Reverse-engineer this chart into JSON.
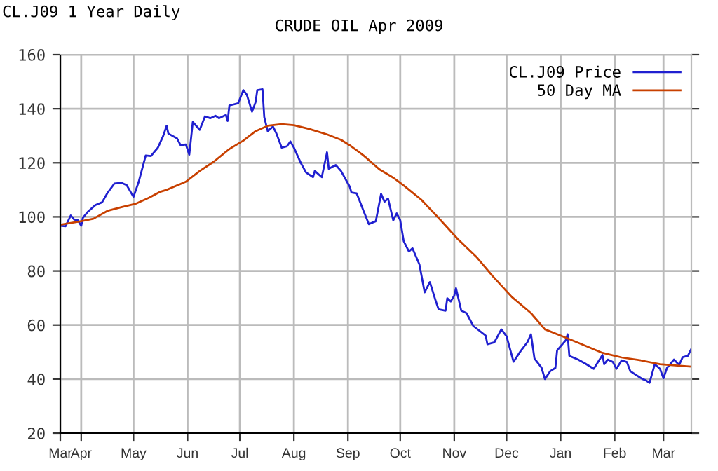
{
  "chart_data": {
    "type": "line",
    "title": "CRUDE OIL Apr 2009",
    "subtitle": "CL.J09 1 Year Daily",
    "xlim": [
      "2008-03-20",
      "2009-03-17"
    ],
    "xticks": [
      {
        "value": "2008-03-20",
        "label": "Mar"
      },
      {
        "value": "2008-04-01",
        "label": "Apr"
      },
      {
        "value": "2008-05-01",
        "label": "May"
      },
      {
        "value": "2008-06-01",
        "label": "Jun"
      },
      {
        "value": "2008-07-01",
        "label": "Jul"
      },
      {
        "value": "2008-08-01",
        "label": "Aug"
      },
      {
        "value": "2008-09-01",
        "label": "Sep"
      },
      {
        "value": "2008-10-01",
        "label": "Oct"
      },
      {
        "value": "2008-11-01",
        "label": "Nov"
      },
      {
        "value": "2008-12-01",
        "label": "Dec"
      },
      {
        "value": "2009-01-01",
        "label": "Jan"
      },
      {
        "value": "2009-02-01",
        "label": "Feb"
      },
      {
        "value": "2009-03-01",
        "label": "Mar"
      }
    ],
    "ylim": [
      20,
      160
    ],
    "yticks": [
      20,
      40,
      60,
      80,
      100,
      120,
      140,
      160
    ],
    "grid": true,
    "legend": "top right",
    "line_style": "solid",
    "series": [
      {
        "name": "CL.J09 Price",
        "color": "#2020d0",
        "x": [
          "2008-03-20",
          "2008-03-23",
          "2008-03-26",
          "2008-03-28",
          "2008-03-30",
          "2008-04-01",
          "2008-04-02",
          "2008-04-05",
          "2008-04-09",
          "2008-04-13",
          "2008-04-16",
          "2008-04-20",
          "2008-04-24",
          "2008-04-27",
          "2008-05-01",
          "2008-05-04",
          "2008-05-08",
          "2008-05-11",
          "2008-05-15",
          "2008-05-18",
          "2008-05-20",
          "2008-05-21",
          "2008-05-26",
          "2008-05-28",
          "2008-05-31",
          "2008-06-02",
          "2008-06-04",
          "2008-06-08",
          "2008-06-11",
          "2008-06-14",
          "2008-06-17",
          "2008-06-19",
          "2008-06-23",
          "2008-06-24",
          "2008-06-25",
          "2008-06-30",
          "2008-07-03",
          "2008-07-05",
          "2008-07-08",
          "2008-07-10",
          "2008-07-11",
          "2008-07-14",
          "2008-07-15",
          "2008-07-17",
          "2008-07-20",
          "2008-07-22",
          "2008-07-25",
          "2008-07-28",
          "2008-07-30",
          "2008-08-01",
          "2008-08-05",
          "2008-08-08",
          "2008-08-12",
          "2008-08-13",
          "2008-08-17",
          "2008-08-20",
          "2008-08-21",
          "2008-08-25",
          "2008-08-28",
          "2008-09-02",
          "2008-09-03",
          "2008-09-06",
          "2008-09-10",
          "2008-09-13",
          "2008-09-17",
          "2008-09-20",
          "2008-09-22",
          "2008-09-24",
          "2008-09-27",
          "2008-09-29",
          "2008-10-01",
          "2008-10-03",
          "2008-10-06",
          "2008-10-08",
          "2008-10-12",
          "2008-10-15",
          "2008-10-18",
          "2008-10-21",
          "2008-10-23",
          "2008-10-27",
          "2008-10-28",
          "2008-10-30",
          "2008-11-01",
          "2008-11-02",
          "2008-11-05",
          "2008-11-08",
          "2008-11-12",
          "2008-11-19",
          "2008-11-20",
          "2008-11-24",
          "2008-11-28",
          "2008-12-01",
          "2008-12-05",
          "2008-12-09",
          "2008-12-13",
          "2008-12-15",
          "2008-12-17",
          "2008-12-21",
          "2008-12-23",
          "2008-12-26",
          "2008-12-29",
          "2008-12-30",
          "2009-01-04",
          "2009-01-05",
          "2009-01-06",
          "2009-01-11",
          "2009-01-15",
          "2009-01-20",
          "2009-01-25",
          "2009-01-26",
          "2009-01-28",
          "2009-01-31",
          "2009-02-02",
          "2009-02-05",
          "2009-02-08",
          "2009-02-10",
          "2009-02-14",
          "2009-02-17",
          "2009-02-19",
          "2009-02-21",
          "2009-02-24",
          "2009-02-27",
          "2009-03-01",
          "2009-03-03",
          "2009-03-07",
          "2009-03-10",
          "2009-03-12",
          "2009-03-15",
          "2009-03-17"
        ],
        "values": [
          96.7,
          96.5,
          100.5,
          99,
          98.8,
          96.7,
          99.7,
          102,
          104.3,
          105.4,
          108.8,
          112.3,
          112.6,
          111.8,
          107.4,
          113,
          122.7,
          122.5,
          125.6,
          129.9,
          133.7,
          130.8,
          129,
          126.5,
          126.8,
          123,
          135.1,
          132.2,
          137.2,
          136.5,
          137.4,
          136.5,
          137.7,
          135.5,
          141.2,
          142,
          146.9,
          145.2,
          138.9,
          142.4,
          146.9,
          147.2,
          136.9,
          131.7,
          133.4,
          130.8,
          125.6,
          126.1,
          127.9,
          125.6,
          119.9,
          116.4,
          114.7,
          117,
          114.7,
          123.9,
          117.8,
          119.2,
          117,
          111.2,
          109,
          108.7,
          102.1,
          97.3,
          98.4,
          108.5,
          105.6,
          106.8,
          98.7,
          101.3,
          98.7,
          91,
          87.2,
          88.4,
          82.4,
          72.1,
          75.9,
          69.6,
          65.8,
          65.3,
          69.9,
          68.7,
          70.9,
          73.6,
          65.3,
          64.4,
          59.6,
          56.1,
          52.9,
          53.6,
          58.4,
          55.8,
          46.4,
          50.3,
          53.7,
          56.6,
          47.6,
          44.3,
          40,
          42.9,
          44.1,
          50.6,
          54.4,
          56.6,
          48.6,
          47.2,
          45.8,
          43.8,
          48.9,
          45.5,
          47.2,
          46.3,
          43.8,
          46.9,
          46.3,
          42.9,
          41.2,
          40,
          39.5,
          38.6,
          45.5,
          43.8,
          40.3,
          44.1,
          47.2,
          45.2,
          48.1,
          48.6,
          51.2
        ]
      },
      {
        "name": "50 Day MA",
        "color": "#c84000",
        "x": [
          "2008-03-20",
          "2008-04-01",
          "2008-04-08",
          "2008-04-16",
          "2008-04-24",
          "2008-05-02",
          "2008-05-10",
          "2008-05-16",
          "2008-05-20",
          "2008-05-31",
          "2008-06-08",
          "2008-06-16",
          "2008-06-25",
          "2008-07-03",
          "2008-07-10",
          "2008-07-17",
          "2008-07-25",
          "2008-08-01",
          "2008-08-10",
          "2008-08-20",
          "2008-08-28",
          "2008-09-02",
          "2008-09-10",
          "2008-09-19",
          "2008-09-27",
          "2008-10-03",
          "2008-10-13",
          "2008-10-23",
          "2008-11-03",
          "2008-11-14",
          "2008-11-23",
          "2008-12-04",
          "2008-12-15",
          "2008-12-23",
          "2009-01-01",
          "2009-01-12",
          "2009-01-25",
          "2009-02-05",
          "2009-02-16",
          "2009-02-27",
          "2009-03-09",
          "2009-03-17"
        ],
        "values": [
          97.1,
          98.4,
          99.3,
          102.2,
          103.6,
          104.8,
          107.1,
          109.2,
          110,
          113,
          117,
          120.4,
          125.1,
          128.2,
          131.7,
          133.7,
          134.3,
          133.9,
          132.5,
          130.5,
          128.5,
          126.5,
          122.7,
          117.6,
          114.5,
          111.6,
          106.4,
          99.6,
          91.8,
          85,
          78.1,
          70.4,
          64.4,
          58.4,
          56.1,
          53.2,
          49.7,
          48,
          46.9,
          45.5,
          45,
          44.6
        ]
      }
    ]
  }
}
